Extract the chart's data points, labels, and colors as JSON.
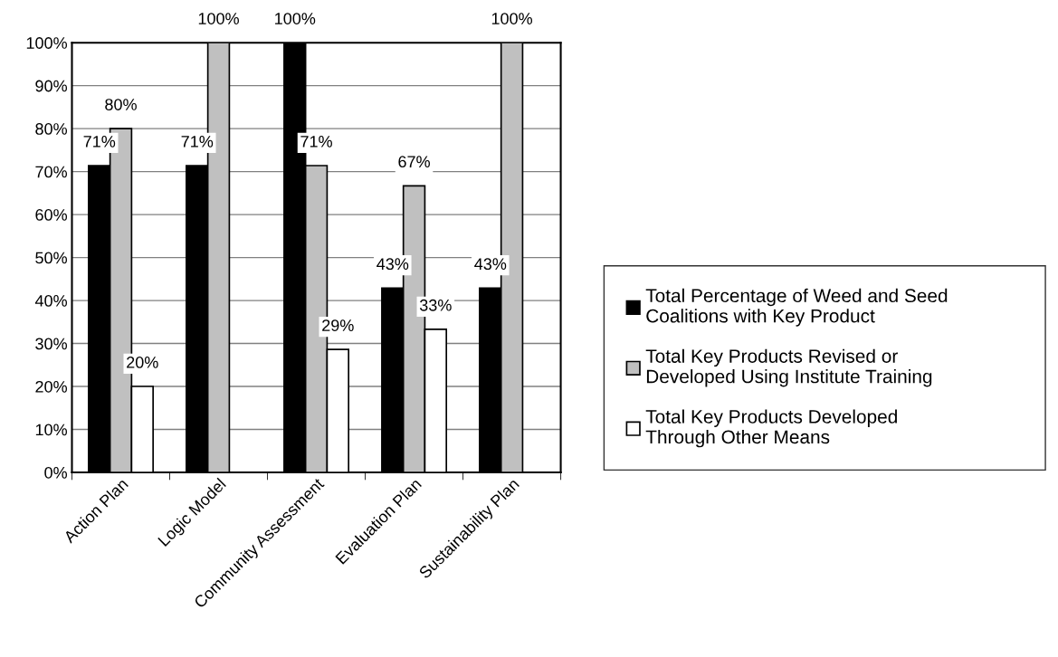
{
  "chart_data": {
    "type": "bar",
    "categories": [
      "Action Plan",
      "Logic Model",
      "Community Assessment",
      "Evaluation Plan",
      "Sustainability Plan"
    ],
    "series": [
      {
        "name": "Total Percentage of Weed and Seed\nCoalitions with Key Product",
        "color": "#000000",
        "values": [
          71.4,
          71.4,
          100,
          42.9,
          42.9
        ],
        "value_labels": [
          "71%",
          "71%",
          "100%",
          "43%",
          "43%"
        ]
      },
      {
        "name": "Total Key Products Revised or\nDeveloped Using Institute Training",
        "color": "#c0c0c0",
        "values": [
          80,
          100,
          71.4,
          66.7,
          100
        ],
        "value_labels": [
          "80%",
          "100%",
          "71%",
          "67%",
          "100%"
        ]
      },
      {
        "name": "Total Key Products Developed\nThrough Other Means",
        "color": "#ffffff",
        "values": [
          20,
          null,
          28.6,
          33.3,
          null
        ],
        "value_labels": [
          "20%",
          null,
          "29%",
          "33%",
          null
        ]
      }
    ],
    "ylim": [
      0,
      100
    ],
    "yticks": [
      {
        "value": 0,
        "label": "0%"
      },
      {
        "value": 10,
        "label": "10%"
      },
      {
        "value": 20,
        "label": "20%"
      },
      {
        "value": 30,
        "label": "30%"
      },
      {
        "value": 40,
        "label": "40%"
      },
      {
        "value": 50,
        "label": "50%"
      },
      {
        "value": 60,
        "label": "60%"
      },
      {
        "value": 70,
        "label": "70%"
      },
      {
        "value": 80,
        "label": "80%"
      },
      {
        "value": 90,
        "label": "90%"
      },
      {
        "value": 100,
        "label": "100%"
      }
    ],
    "grid": "y",
    "legend": "right"
  }
}
